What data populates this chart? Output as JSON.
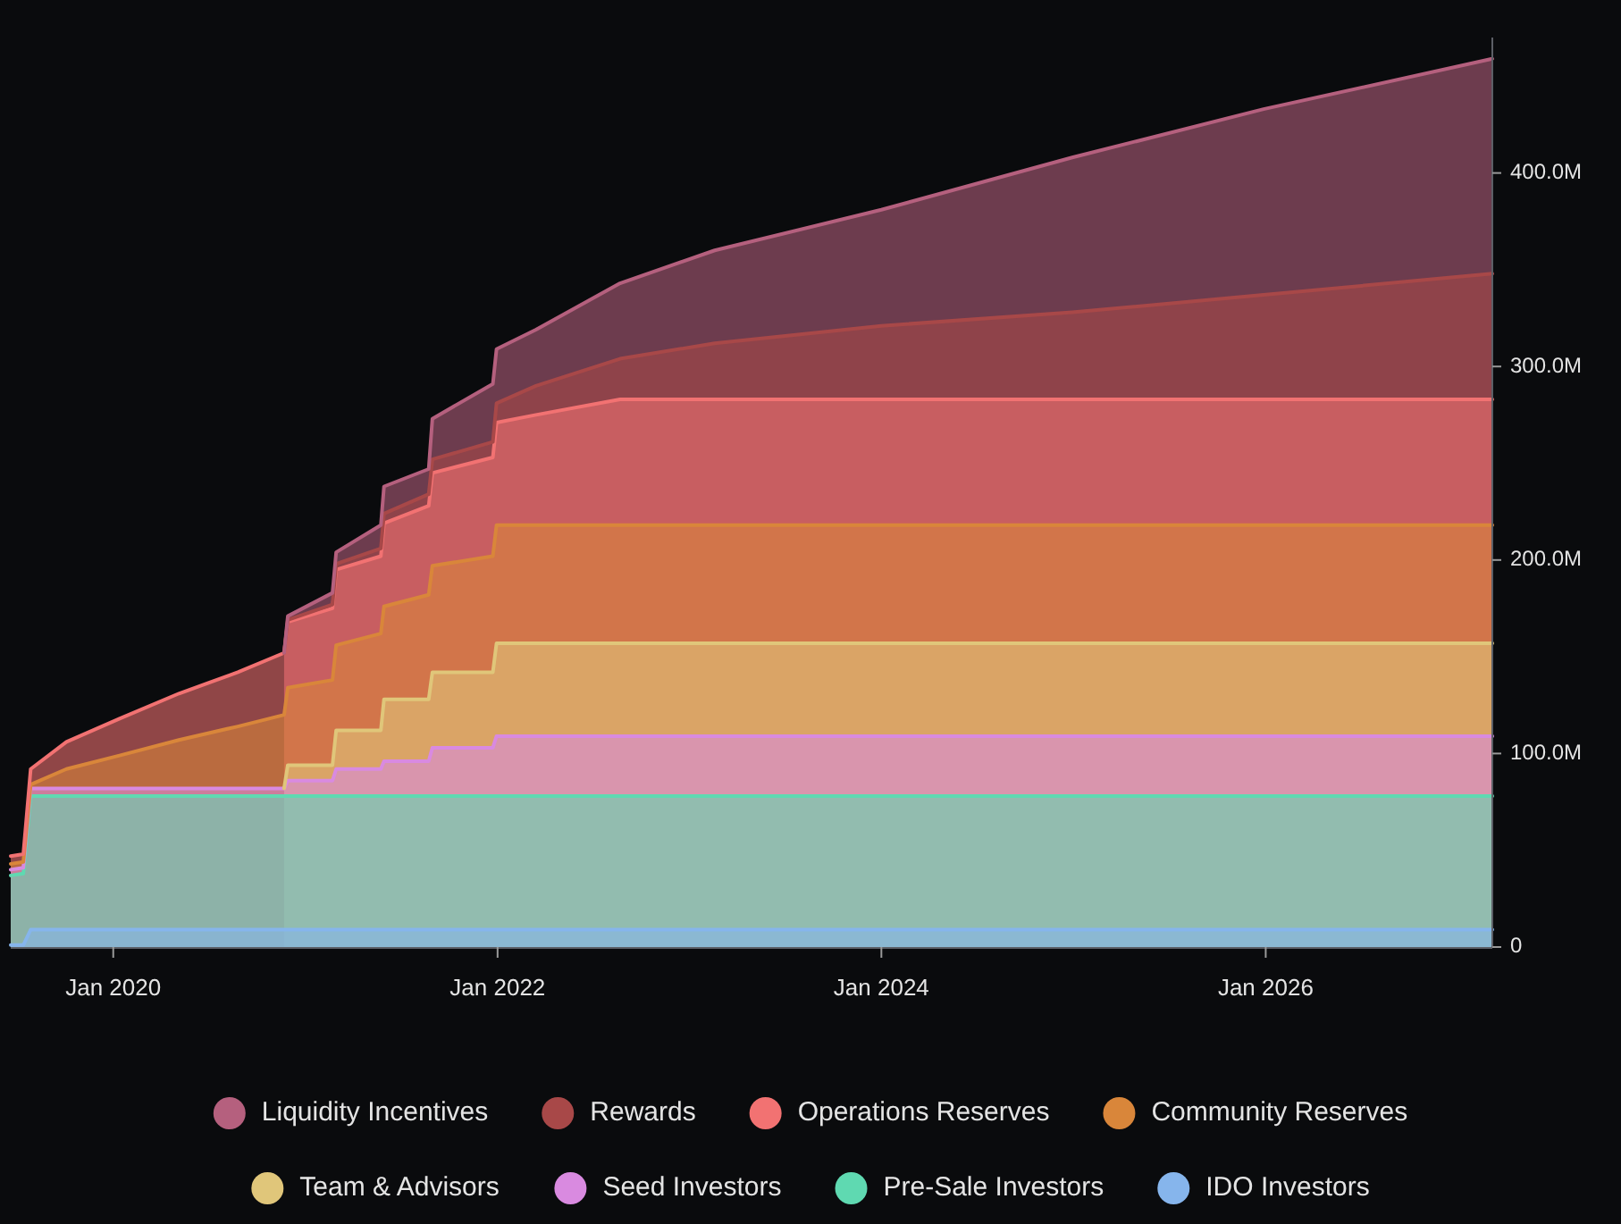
{
  "chart_data": {
    "type": "area",
    "stacked": true,
    "legend": "bottom",
    "x": [
      "2019-06-20",
      "2019-07-14",
      "2019-07-28",
      "2019-10-04",
      "2020-01-13",
      "2020-05-05",
      "2020-08-25",
      "2020-11-21",
      "2020-11-28",
      "2021-02-21",
      "2021-02-28",
      "2021-05-24",
      "2021-05-30",
      "2021-08-23",
      "2021-08-30",
      "2021-12-23",
      "2021-12-30",
      "2022-03-15",
      "2022-08-22",
      "2023-02-18",
      "2024-01-01",
      "2024-12-29",
      "2025-12-28",
      "2027-03-08"
    ],
    "xlim": [
      "2019-06-20",
      "2027-03-08"
    ],
    "xticks": [
      {
        "value": "2020-01-01",
        "label": "Jan 2020"
      },
      {
        "value": "2022-01-01",
        "label": "Jan 2022"
      },
      {
        "value": "2024-01-01",
        "label": "Jan 2024"
      },
      {
        "value": "2026-01-01",
        "label": "Jan 2026"
      }
    ],
    "ylim": [
      0,
      470
    ],
    "yticks": [
      0,
      {
        "value": 100,
        "label": "100.0M"
      },
      {
        "value": 200,
        "label": "200.0M"
      },
      {
        "value": 300,
        "label": "300.0M"
      },
      {
        "value": 400,
        "label": "400.0M"
      }
    ],
    "series": [
      {
        "name": "IDO Investors",
        "color": "#86b5ec",
        "values": [
          1,
          1,
          9,
          9,
          9,
          9,
          9,
          9,
          9,
          9,
          9,
          9,
          9,
          9,
          9,
          9,
          9,
          9,
          9,
          9,
          9,
          9,
          9,
          9
        ]
      },
      {
        "name": "Pre-Sale Investors",
        "color": "#5fd9b1",
        "values": [
          36,
          37,
          69,
          69,
          69,
          69,
          69,
          69,
          69,
          69,
          69,
          69,
          69,
          69,
          69,
          69,
          69,
          69,
          69,
          69,
          69,
          69,
          69,
          69
        ]
      },
      {
        "name": "Seed Investors",
        "color": "#d98ae0",
        "values": [
          3,
          3,
          4,
          4,
          4,
          4,
          4,
          4,
          8,
          8,
          14,
          14,
          18,
          18,
          25,
          25,
          31,
          31,
          31,
          31,
          31,
          31,
          31,
          31
        ]
      },
      {
        "name": "Team & Advisors",
        "color": "#e0c67a",
        "values": [
          null,
          null,
          null,
          null,
          null,
          null,
          null,
          0,
          8,
          8,
          20,
          20,
          32,
          32,
          39,
          39,
          48,
          48,
          48,
          48,
          48,
          48,
          48,
          48
        ]
      },
      {
        "name": "Community Reserves",
        "color": "#d9863a",
        "values": [
          3,
          3,
          2,
          10,
          17,
          25,
          32,
          38,
          40,
          44,
          44,
          50,
          48,
          54,
          55,
          60,
          61,
          61,
          61,
          61,
          61,
          61,
          61,
          61
        ]
      },
      {
        "name": "Operations Reserves",
        "color": "#f27272",
        "values": [
          4,
          4,
          8,
          14,
          19,
          24,
          28,
          32,
          34,
          37,
          39,
          40,
          43,
          46,
          48,
          51,
          53,
          57,
          65,
          65,
          65,
          65,
          65,
          65
        ]
      },
      {
        "name": "Rewards",
        "color": "#a84848",
        "values": [
          null,
          null,
          null,
          null,
          null,
          null,
          null,
          0,
          1,
          2,
          3,
          4,
          5,
          6,
          7,
          8,
          10,
          15,
          21,
          29,
          38,
          45,
          54,
          65
        ]
      },
      {
        "name": "Liquidity Incentives",
        "color": "#b5607e",
        "values": [
          null,
          null,
          null,
          null,
          null,
          null,
          null,
          0,
          2,
          6,
          6,
          12,
          14,
          13,
          21,
          30,
          28,
          29,
          39,
          48,
          60,
          80,
          96,
          111
        ]
      }
    ]
  }
}
